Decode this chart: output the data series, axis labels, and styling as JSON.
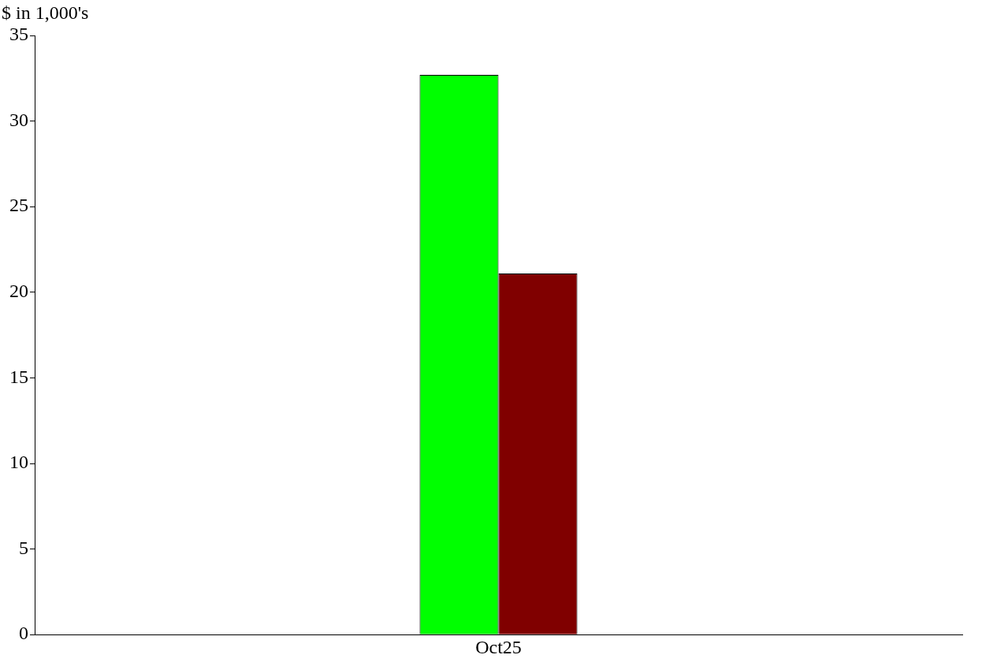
{
  "chart_data": {
    "type": "bar",
    "ylabel": "$ in 1,000's",
    "categories": [
      "Oct25"
    ],
    "series": [
      {
        "color": "#00ff00",
        "values": [
          32.7
        ]
      },
      {
        "color": "#800000",
        "values": [
          21.1
        ]
      }
    ],
    "ylim": [
      0,
      35
    ],
    "yticks": [
      0,
      5,
      10,
      15,
      20,
      25,
      30,
      35
    ],
    "grid": false,
    "legend": false
  }
}
